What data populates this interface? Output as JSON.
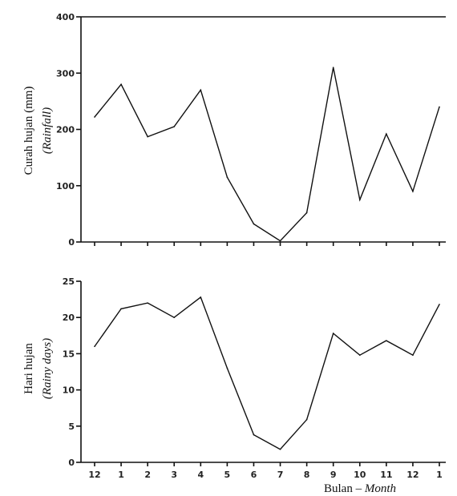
{
  "chart_data": [
    {
      "type": "line",
      "ylabel": "Curah hujan (mm)",
      "ylabel_en": "(Rainfall)",
      "ylim": [
        0,
        400
      ],
      "yticks": [
        "0",
        "100",
        "200",
        "300",
        "400"
      ],
      "categories": [
        "12",
        "1",
        "2",
        "3",
        "4",
        "5",
        "6",
        "7",
        "8",
        "9",
        "10",
        "11",
        "12",
        "1"
      ],
      "series": [
        {
          "values": [
            222,
            280,
            187,
            205,
            270,
            115,
            32,
            2,
            52,
            310,
            75,
            192,
            90,
            240
          ]
        }
      ],
      "grid": false
    },
    {
      "type": "line",
      "ylabel": "Hari hujan",
      "ylabel_en": "(Rainy days)",
      "ylim": [
        0,
        25
      ],
      "yticks": [
        "0",
        "5",
        "10",
        "15",
        "20",
        "25"
      ],
      "categories": [
        "12",
        "1",
        "2",
        "3",
        "4",
        "5",
        "6",
        "7",
        "8",
        "9",
        "10",
        "11",
        "12",
        "1"
      ],
      "xticklabels": [
        "12",
        "1",
        "2",
        "3",
        "4",
        "5",
        "6",
        "7",
        "8",
        "9",
        "10",
        "11",
        "12",
        "1"
      ],
      "xlabel": "Bulan",
      "xlabel_en": "Month",
      "xlabel_sep": " – ",
      "series": [
        {
          "values": [
            16,
            21.2,
            22,
            20,
            22.8,
            13,
            3.8,
            1.8,
            5.9,
            17.8,
            14.8,
            16.8,
            14.8,
            21.8
          ]
        }
      ],
      "grid": false
    }
  ]
}
